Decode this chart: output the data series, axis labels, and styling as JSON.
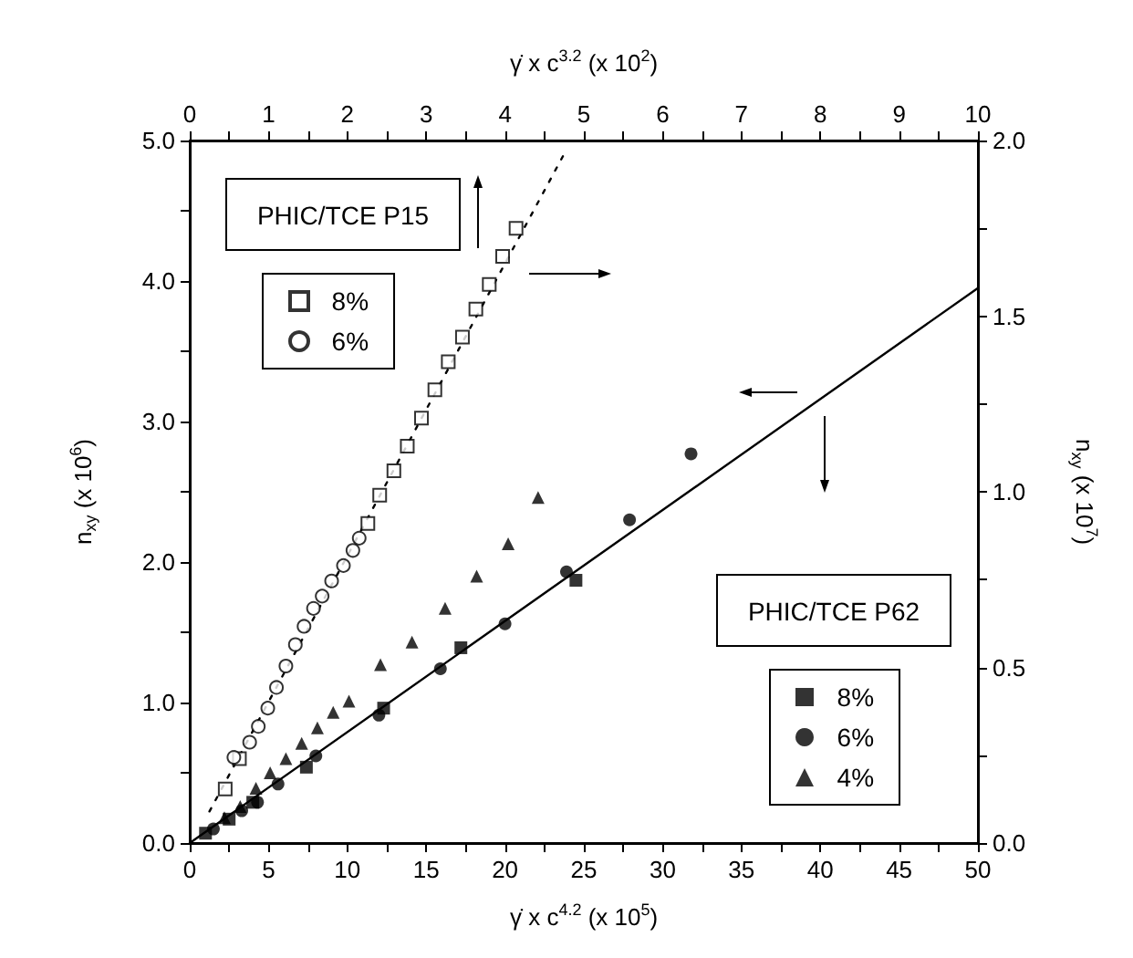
{
  "chart_data": [
    {
      "type": "scatter",
      "xlabel": "γ̇ x c$^{4.2}$ (x 10$^{5}$)",
      "ylabel": "n$_{xy}$ (x 10$^{6}$)",
      "xlim": [
        0,
        50
      ],
      "xticks": [
        0,
        {
          "value": 2.5,
          "label": null
        },
        5,
        {
          "value": 7.5,
          "label": null
        },
        10,
        {
          "value": 12.5,
          "label": null
        },
        15,
        {
          "value": 17.5,
          "label": null
        },
        20,
        {
          "value": 22.5,
          "label": null
        },
        25,
        {
          "value": 27.5,
          "label": null
        },
        30,
        {
          "value": 32.5,
          "label": null
        },
        35,
        {
          "value": 37.5,
          "label": null
        },
        40,
        {
          "value": 42.5,
          "label": null
        },
        45,
        {
          "value": 47.5,
          "label": null
        },
        50
      ],
      "ylim": [
        0,
        5
      ],
      "yticks": [
        {
          "value": 0,
          "label": "0.0"
        },
        {
          "value": 0.5,
          "label": null
        },
        {
          "value": 1,
          "label": "1.0"
        },
        {
          "value": 1.5,
          "label": null
        },
        {
          "value": 2,
          "label": "2.0"
        },
        {
          "value": 2.5,
          "label": null
        },
        {
          "value": 3,
          "label": "3.0"
        },
        {
          "value": 3.5,
          "label": null
        },
        {
          "value": 4,
          "label": "4.0"
        },
        {
          "value": 4.5,
          "label": null
        },
        {
          "value": 5,
          "label": "5.0"
        }
      ],
      "legend": "bottom right",
      "annotations": [
        "PHIC/TCE P62"
      ],
      "series": [
        {
          "name": "8%",
          "marker": "square",
          "color": "#000000",
          "x": [
            1.0,
            2.5,
            4.0,
            7.4,
            12.3,
            17.2,
            24.5
          ],
          "values": [
            0.07,
            0.17,
            0.29,
            0.54,
            0.96,
            1.39,
            1.87
          ]
        },
        {
          "name": "6%",
          "marker": "circle",
          "color": "#000000",
          "x": [
            1.5,
            3.3,
            4.3,
            5.6,
            8.0,
            12.0,
            15.9,
            20.0,
            23.9,
            27.9,
            31.8
          ],
          "values": [
            0.1,
            0.23,
            0.29,
            0.42,
            0.62,
            0.91,
            1.24,
            1.56,
            1.93,
            2.3,
            2.77
          ]
        },
        {
          "name": "4%",
          "marker": "triangle",
          "color": "#000000",
          "x": [
            2.2,
            3.2,
            4.2,
            5.1,
            6.1,
            7.1,
            8.1,
            9.1,
            10.1,
            12.1,
            14.1,
            16.2,
            18.2,
            20.2,
            22.1
          ],
          "values": [
            0.18,
            0.26,
            0.39,
            0.5,
            0.6,
            0.71,
            0.82,
            0.93,
            1.01,
            1.27,
            1.43,
            1.67,
            1.9,
            2.13,
            2.46
          ]
        },
        {
          "type": "line",
          "marker": "none",
          "line_style": "solid",
          "color": "#000000",
          "x": [
            0,
            50
          ],
          "values": [
            0,
            3.95
          ]
        }
      ]
    },
    {
      "type": "scatter",
      "xlabel": "γ̇ x c$^{3.2}$ (x 10$^{2}$)",
      "ylabel": "n$_{xy}$ (x 10$^{7}$)",
      "xlim": [
        0,
        10
      ],
      "xticks": [
        0,
        {
          "value": 0.5,
          "label": null
        },
        1,
        {
          "value": 1.5,
          "label": null
        },
        2,
        {
          "value": 2.5,
          "label": null
        },
        3,
        {
          "value": 3.5,
          "label": null
        },
        4,
        {
          "value": 4.5,
          "label": null
        },
        5,
        {
          "value": 5.5,
          "label": null
        },
        6,
        {
          "value": 6.5,
          "label": null
        },
        7,
        {
          "value": 7.5,
          "label": null
        },
        8,
        {
          "value": 8.5,
          "label": null
        },
        9,
        {
          "value": 9.5,
          "label": null
        },
        10
      ],
      "ylim": [
        0,
        2
      ],
      "yticks": [
        {
          "value": 0,
          "label": "0.0"
        },
        {
          "value": 0.25,
          "label": null
        },
        {
          "value": 0.5,
          "label": "0.5"
        },
        {
          "value": 0.75,
          "label": null
        },
        {
          "value": 1,
          "label": "1.0"
        },
        {
          "value": 1.25,
          "label": null
        },
        {
          "value": 1.5,
          "label": "1.5"
        },
        {
          "value": 1.75,
          "label": null
        },
        {
          "value": 2,
          "label": "2.0"
        }
      ],
      "legend": "top left",
      "annotations": [
        "PHIC/TCE P15"
      ],
      "series": [
        {
          "name": "8%",
          "marker": "square",
          "color": "#000000",
          "x": [
            0.45,
            0.63,
            2.26,
            2.41,
            2.59,
            2.76,
            2.94,
            3.11,
            3.28,
            3.46,
            3.63,
            3.8,
            3.97,
            4.14
          ],
          "values": [
            0.154,
            0.24,
            0.91,
            0.99,
            1.06,
            1.13,
            1.21,
            1.29,
            1.37,
            1.44,
            1.52,
            1.59,
            1.67,
            1.75
          ]
        },
        {
          "name": "6%",
          "marker": "circle",
          "color": "#000000",
          "x": [
            0.56,
            0.76,
            0.87,
            0.99,
            1.1,
            1.22,
            1.34,
            1.45,
            1.57,
            1.68,
            1.8,
            1.95,
            2.07,
            2.15
          ],
          "values": [
            0.244,
            0.287,
            0.332,
            0.384,
            0.443,
            0.504,
            0.565,
            0.617,
            0.668,
            0.703,
            0.746,
            0.79,
            0.833,
            0.868
          ]
        },
        {
          "type": "line",
          "marker": "none",
          "line_style": "dotted",
          "color": "#000000",
          "x": [
            0.25,
            4.77
          ],
          "values": [
            0.09,
            1.97
          ]
        }
      ]
    }
  ]
}
